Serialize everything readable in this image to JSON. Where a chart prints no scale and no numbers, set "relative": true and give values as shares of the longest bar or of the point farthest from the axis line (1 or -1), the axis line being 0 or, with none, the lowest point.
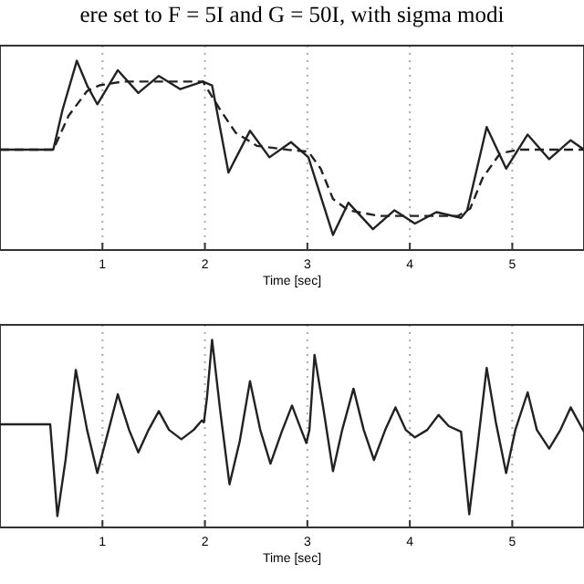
{
  "chart_data": [
    {
      "type": "line",
      "relative": true,
      "xlabel": "Time [sec]",
      "xlim": [
        0,
        5.7
      ],
      "xticks": [
        1,
        2,
        3,
        4,
        5
      ],
      "grid": "x",
      "annotations": [
        "ere set to F = 5I and G = 50I, with sigma modi"
      ],
      "series": [
        {
          "color": "#222222",
          "line_style": "solid",
          "x": [
            0,
            0.52,
            0.61,
            0.75,
            0.85,
            0.95,
            1.15,
            1.35,
            1.55,
            1.76,
            1.98,
            2.07,
            2.23,
            2.44,
            2.63,
            2.84,
            3.01,
            3.25,
            3.4,
            3.64,
            3.85,
            4.05,
            4.26,
            4.5,
            4.56,
            4.75,
            4.94,
            5.15,
            5.36,
            5.57,
            5.7
          ],
          "values": [
            0.53,
            0.53,
            0.74,
            1.0,
            0.87,
            0.77,
            0.95,
            0.83,
            0.92,
            0.85,
            0.89,
            0.87,
            0.41,
            0.63,
            0.49,
            0.57,
            0.49,
            0.08,
            0.25,
            0.11,
            0.21,
            0.14,
            0.2,
            0.17,
            0.21,
            0.65,
            0.43,
            0.61,
            0.48,
            0.58,
            0.53
          ]
        },
        {
          "color": "#222222",
          "line_style": "dashed",
          "x": [
            0,
            0.52,
            0.67,
            0.85,
            0.97,
            1.2,
            1.98,
            2.15,
            2.3,
            2.51,
            2.81,
            3.01,
            3.13,
            3.25,
            3.4,
            3.7,
            4.47,
            4.59,
            4.71,
            4.88,
            5.06,
            5.7
          ],
          "values": [
            0.53,
            0.53,
            0.71,
            0.84,
            0.87,
            0.89,
            0.89,
            0.74,
            0.62,
            0.55,
            0.53,
            0.52,
            0.43,
            0.27,
            0.21,
            0.18,
            0.18,
            0.22,
            0.38,
            0.51,
            0.53,
            0.53
          ]
        }
      ]
    },
    {
      "type": "line",
      "relative": true,
      "xlabel": "Time [sec]",
      "xlim": [
        0,
        5.7
      ],
      "xticks": [
        1,
        2,
        3,
        4,
        5
      ],
      "grid": "x",
      "series": [
        {
          "color": "#222222",
          "line_style": "solid",
          "x": [
            0,
            0.49,
            0.56,
            0.64,
            0.74,
            0.85,
            0.95,
            1.06,
            1.15,
            1.26,
            1.35,
            1.45,
            1.55,
            1.65,
            1.77,
            1.89,
            1.97,
            1.99,
            2.02,
            2.07,
            2.15,
            2.24,
            2.34,
            2.44,
            2.54,
            2.64,
            2.75,
            2.85,
            2.94,
            2.99,
            3.02,
            3.07,
            3.16,
            3.25,
            3.34,
            3.45,
            3.55,
            3.65,
            3.76,
            3.86,
            3.96,
            4.05,
            4.17,
            4.28,
            4.38,
            4.5,
            4.58,
            4.66,
            4.75,
            4.84,
            4.94,
            5.03,
            5.15,
            5.24,
            5.36,
            5.47,
            5.57,
            5.7
          ],
          "values": [
            0.55,
            0.55,
            0.06,
            0.36,
            0.84,
            0.52,
            0.29,
            0.52,
            0.71,
            0.52,
            0.4,
            0.52,
            0.62,
            0.52,
            0.47,
            0.52,
            0.57,
            0.56,
            0.69,
            1.0,
            0.62,
            0.23,
            0.46,
            0.78,
            0.52,
            0.34,
            0.51,
            0.65,
            0.52,
            0.45,
            0.52,
            0.92,
            0.62,
            0.3,
            0.52,
            0.74,
            0.52,
            0.36,
            0.52,
            0.64,
            0.52,
            0.48,
            0.52,
            0.6,
            0.54,
            0.51,
            0.07,
            0.43,
            0.85,
            0.56,
            0.29,
            0.52,
            0.72,
            0.52,
            0.42,
            0.52,
            0.64,
            0.51
          ]
        }
      ]
    }
  ]
}
